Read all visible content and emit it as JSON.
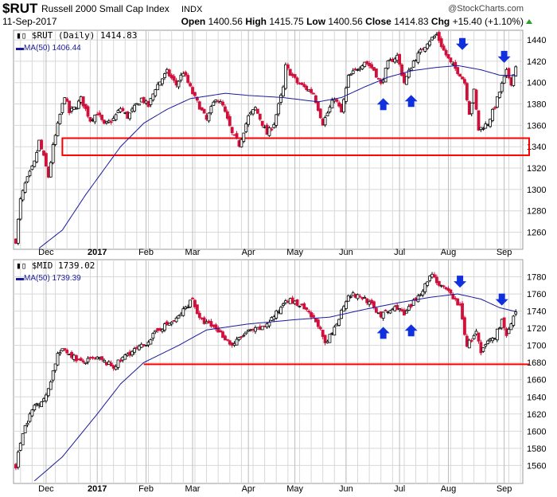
{
  "header": {
    "symbol": "$RUT",
    "name": "Russell 2000 Small Cap Index",
    "exchange": "INDX",
    "credit": "@StockCharts.com",
    "date": "11-Sep-2017",
    "open_label": "Open",
    "open": "1400.56",
    "high_label": "High",
    "high": "1415.75",
    "low_label": "Low",
    "low": "1400.56",
    "close_label": "Close",
    "close": "1414.83",
    "chg_label": "Chg",
    "chg": "+15.40 (+1.10%)",
    "up_color": "#2e9b2e"
  },
  "colors": {
    "down": "#d0103a",
    "up": "#000000",
    "ma": "#1a1a9c",
    "support": "#ff0000",
    "arrow": "#1030e0",
    "grid": "#d8d8d8"
  },
  "chart_data": [
    {
      "type": "candlestick",
      "title": "$RUT (Daily) 1414.83",
      "ma_legend": "MA(50) 1406.44",
      "ylim": [
        1244,
        1449
      ],
      "yticks": [
        1260,
        1280,
        1300,
        1320,
        1340,
        1360,
        1380,
        1400,
        1420,
        1440
      ],
      "close_anchors": [
        [
          0,
          1252
        ],
        [
          2,
          1290
        ],
        [
          4,
          1305
        ],
        [
          8,
          1325
        ],
        [
          10,
          1345
        ],
        [
          12,
          1330
        ],
        [
          14,
          1312
        ],
        [
          16,
          1340
        ],
        [
          19,
          1370
        ],
        [
          21,
          1388
        ],
        [
          23,
          1372
        ],
        [
          26,
          1378
        ],
        [
          28,
          1385
        ],
        [
          32,
          1365
        ],
        [
          35,
          1372
        ],
        [
          38,
          1360
        ],
        [
          42,
          1366
        ],
        [
          45,
          1376
        ],
        [
          48,
          1368
        ],
        [
          54,
          1385
        ],
        [
          57,
          1378
        ],
        [
          60,
          1395
        ],
        [
          65,
          1410
        ],
        [
          69,
          1398
        ],
        [
          72,
          1410
        ],
        [
          76,
          1390
        ],
        [
          82,
          1365
        ],
        [
          86,
          1386
        ],
        [
          89,
          1378
        ],
        [
          93,
          1352
        ],
        [
          96,
          1342
        ],
        [
          100,
          1368
        ],
        [
          103,
          1376
        ],
        [
          108,
          1352
        ],
        [
          111,
          1362
        ],
        [
          115,
          1395
        ],
        [
          116,
          1415
        ],
        [
          121,
          1400
        ],
        [
          128,
          1390
        ],
        [
          132,
          1362
        ],
        [
          137,
          1386
        ],
        [
          140,
          1372
        ],
        [
          143,
          1405
        ],
        [
          150,
          1420
        ],
        [
          154,
          1412
        ],
        [
          157,
          1398
        ],
        [
          160,
          1418
        ],
        [
          164,
          1425
        ],
        [
          167,
          1400
        ],
        [
          171,
          1420
        ],
        [
          177,
          1438
        ],
        [
          181,
          1445
        ],
        [
          184,
          1430
        ],
        [
          187,
          1418
        ],
        [
          191,
          1408
        ],
        [
          193,
          1400
        ],
        [
          195,
          1372
        ],
        [
          197,
          1392
        ],
        [
          199,
          1356
        ],
        [
          203,
          1362
        ],
        [
          206,
          1378
        ],
        [
          209,
          1398
        ],
        [
          211,
          1410
        ],
        [
          213,
          1400
        ],
        [
          215,
          1414.83
        ]
      ],
      "ma50": [
        [
          10,
          1245
        ],
        [
          20,
          1262
        ],
        [
          30,
          1295
        ],
        [
          40,
          1325
        ],
        [
          45,
          1340
        ],
        [
          55,
          1362
        ],
        [
          65,
          1375
        ],
        [
          75,
          1385
        ],
        [
          90,
          1390
        ],
        [
          100,
          1388
        ],
        [
          115,
          1386
        ],
        [
          130,
          1382
        ],
        [
          140,
          1386
        ],
        [
          150,
          1396
        ],
        [
          160,
          1405
        ],
        [
          170,
          1411
        ],
        [
          180,
          1414
        ],
        [
          190,
          1416
        ],
        [
          200,
          1412
        ],
        [
          208,
          1407
        ],
        [
          215,
          1406.44
        ]
      ],
      "support_band": {
        "from_day": 20,
        "low": 1332,
        "high": 1348
      },
      "arrows": [
        {
          "dir": "down",
          "day": 192,
          "value": 1435
        },
        {
          "dir": "down",
          "day": 210,
          "value": 1423
        },
        {
          "dir": "up",
          "day": 158,
          "value": 1381
        },
        {
          "dir": "up",
          "day": 170,
          "value": 1384
        }
      ]
    },
    {
      "type": "candlestick",
      "title": "$MID 1739.02",
      "ma_legend": "MA(50) 1739.39",
      "ylim": [
        1539,
        1800
      ],
      "yticks": [
        1560,
        1580,
        1600,
        1620,
        1640,
        1660,
        1680,
        1700,
        1720,
        1740,
        1760,
        1780
      ],
      "close_anchors": [
        [
          0,
          1560
        ],
        [
          3,
          1600
        ],
        [
          8,
          1630
        ],
        [
          13,
          1640
        ],
        [
          18,
          1690
        ],
        [
          21,
          1695
        ],
        [
          28,
          1680
        ],
        [
          35,
          1685
        ],
        [
          42,
          1675
        ],
        [
          48,
          1690
        ],
        [
          55,
          1700
        ],
        [
          62,
          1720
        ],
        [
          69,
          1730
        ],
        [
          76,
          1755
        ],
        [
          79,
          1730
        ],
        [
          86,
          1720
        ],
        [
          93,
          1700
        ],
        [
          99,
          1715
        ],
        [
          106,
          1720
        ],
        [
          113,
          1740
        ],
        [
          116,
          1755
        ],
        [
          123,
          1745
        ],
        [
          130,
          1725
        ],
        [
          133,
          1700
        ],
        [
          137,
          1720
        ],
        [
          143,
          1760
        ],
        [
          150,
          1755
        ],
        [
          157,
          1735
        ],
        [
          164,
          1745
        ],
        [
          167,
          1735
        ],
        [
          171,
          1750
        ],
        [
          176,
          1770
        ],
        [
          179,
          1785
        ],
        [
          182,
          1770
        ],
        [
          187,
          1760
        ],
        [
          191,
          1745
        ],
        [
          194,
          1700
        ],
        [
          198,
          1715
        ],
        [
          200,
          1690
        ],
        [
          203,
          1705
        ],
        [
          206,
          1710
        ],
        [
          209,
          1730
        ],
        [
          211,
          1710
        ],
        [
          215,
          1739.02
        ]
      ],
      "ma50": [
        [
          8,
          1542
        ],
        [
          20,
          1570
        ],
        [
          35,
          1620
        ],
        [
          45,
          1655
        ],
        [
          55,
          1680
        ],
        [
          70,
          1700
        ],
        [
          82,
          1718
        ],
        [
          100,
          1725
        ],
        [
          120,
          1730
        ],
        [
          135,
          1733
        ],
        [
          150,
          1742
        ],
        [
          165,
          1750
        ],
        [
          178,
          1756
        ],
        [
          190,
          1760
        ],
        [
          200,
          1754
        ],
        [
          208,
          1744
        ],
        [
          215,
          1739.39
        ]
      ],
      "support_line": {
        "from_day": 55,
        "value": 1678
      },
      "arrows": [
        {
          "dir": "down",
          "day": 191,
          "value": 1773
        },
        {
          "dir": "down",
          "day": 209,
          "value": 1752
        },
        {
          "dir": "up",
          "day": 158,
          "value": 1716
        },
        {
          "dir": "up",
          "day": 170,
          "value": 1719
        }
      ]
    }
  ],
  "x_axis": {
    "ticks": [
      {
        "label": "Dec",
        "day": 13
      },
      {
        "label": "2017",
        "day": 35,
        "bold": true
      },
      {
        "label": "Feb",
        "day": 56
      },
      {
        "label": "Mar",
        "day": 76
      },
      {
        "label": "Apr",
        "day": 100
      },
      {
        "label": "May",
        "day": 120
      },
      {
        "label": "Jun",
        "day": 142
      },
      {
        "label": "Jul",
        "day": 165
      },
      {
        "label": "Aug",
        "day": 186
      },
      {
        "label": "Sep",
        "day": 210
      }
    ],
    "xlim": [
      -1,
      218
    ]
  }
}
